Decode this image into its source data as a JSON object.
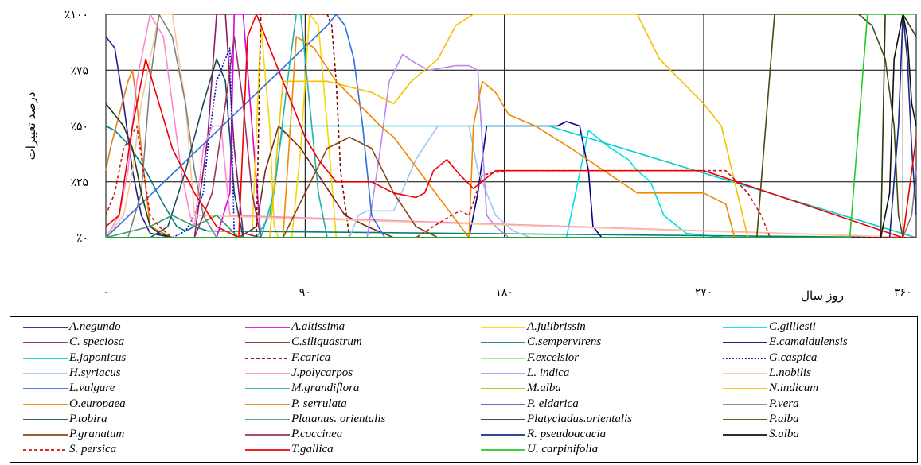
{
  "chart_data": {
    "type": "line",
    "ylabel": "درصد تغییرات",
    "xlabel": "روز سال",
    "xlim": [
      0,
      366
    ],
    "ylim": [
      0,
      100
    ],
    "x_ticks": [
      0,
      90,
      180,
      270,
      360
    ],
    "x_tick_labels": [
      "۰",
      "۹۰",
      "۱۸۰",
      "۲۷۰",
      "۳۶۰"
    ],
    "y_ticks": [
      0,
      25,
      50,
      75,
      100
    ],
    "y_tick_labels": [
      "٪۰",
      "٪۲۵",
      "٪۵۰",
      "٪۷۵",
      "٪۱۰۰"
    ],
    "grid": true,
    "legend_position": "bottom",
    "series": [
      {
        "name": "A.negundo",
        "color": "#1f1f8f",
        "dash": "solid",
        "x": [
          0,
          4,
          8,
          12,
          16,
          20,
          30,
          40,
          60,
          120,
          366
        ],
        "y": [
          90,
          85,
          60,
          30,
          10,
          2,
          0,
          0,
          0,
          0,
          0
        ]
      },
      {
        "name": "A.altissima",
        "color": "#e000e0",
        "dash": "solid",
        "x": [
          0,
          50,
          56,
          58,
          62,
          66,
          70,
          80,
          366
        ],
        "y": [
          0,
          0,
          20,
          100,
          100,
          50,
          0,
          0,
          0
        ]
      },
      {
        "name": "A.julibrissin",
        "color": "#f5d800",
        "dash": "solid",
        "x": [
          0,
          60,
          66,
          70,
          74,
          76,
          78,
          80,
          84,
          88,
          92,
          96,
          100,
          104,
          120,
          366
        ],
        "y": [
          0,
          0,
          0,
          95,
          50,
          5,
          0,
          0,
          0,
          40,
          100,
          95,
          50,
          0,
          0,
          0
        ]
      },
      {
        "name": "C.gilliesii",
        "color": "#00e0e0",
        "dash": "solid",
        "x": [
          0,
          200,
          208,
          218,
          228,
          236,
          240,
          246,
          252,
          262,
          280,
          366
        ],
        "y": [
          0,
          0,
          0,
          48,
          40,
          35,
          30,
          25,
          10,
          2,
          0,
          0
        ]
      },
      {
        "name": "C. speciosa",
        "color": "#8b1a6b",
        "dash": "solid",
        "x": [
          0,
          30,
          40,
          46,
          50,
          54,
          58,
          62,
          70,
          366
        ],
        "y": [
          0,
          0,
          0,
          45,
          100,
          100,
          40,
          2,
          0,
          0
        ]
      },
      {
        "name": "C.siliquastrum",
        "color": "#7a2a1a",
        "dash": "solid",
        "x": [
          0,
          60,
          68,
          72,
          78,
          88,
          98,
          108,
          118,
          130,
          366
        ],
        "y": [
          0,
          0,
          5,
          30,
          50,
          40,
          25,
          10,
          5,
          0,
          0
        ]
      },
      {
        "name": "C.sempervirens",
        "color": "#008080",
        "dash": "solid",
        "x": [
          0,
          4,
          10,
          18,
          26,
          32,
          36,
          40,
          46,
          366
        ],
        "y": [
          50,
          48,
          42,
          30,
          15,
          5,
          3,
          5,
          3,
          0
        ]
      },
      {
        "name": "E.camaldulensis",
        "color": "#00008b",
        "dash": "solid",
        "x": [
          0,
          160,
          164,
          168,
          172,
          180,
          195,
          204,
          208,
          214,
          218,
          220,
          224,
          366
        ],
        "y": [
          0,
          0,
          0,
          20,
          50,
          50,
          50,
          50,
          52,
          50,
          30,
          5,
          0,
          0
        ]
      },
      {
        "name": "E.japonicus",
        "color": "#00d0d0",
        "dash": "solid",
        "x": [
          0,
          68,
          74,
          80,
          100,
          140,
          180,
          200,
          366
        ],
        "y": [
          0,
          0,
          10,
          50,
          50,
          50,
          50,
          50,
          0
        ]
      },
      {
        "name": "F.carica",
        "color": "#800000",
        "dash": "dashed",
        "x": [
          0,
          64,
          68,
          70,
          90,
          100,
          102,
          104,
          106,
          110,
          366
        ],
        "y": [
          0,
          0,
          0,
          100,
          100,
          100,
          95,
          70,
          30,
          0,
          0
        ]
      },
      {
        "name": "F.excelsior",
        "color": "#90ee90",
        "dash": "solid",
        "x": [
          0,
          366
        ],
        "y": [
          0,
          0
        ]
      },
      {
        "name": "G.caspica",
        "color": "#0000cc",
        "dash": "dotted",
        "x": [
          0,
          30,
          36,
          40,
          44,
          46,
          50,
          54,
          56,
          58,
          366
        ],
        "y": [
          0,
          0,
          3,
          10,
          20,
          40,
          70,
          80,
          85,
          0,
          0
        ]
      },
      {
        "name": "H.syriacus",
        "color": "#9fc5f0",
        "dash": "solid",
        "x": [
          0,
          110,
          114,
          118,
          130,
          140,
          150,
          156,
          160,
          164,
          168,
          176,
          184,
          192,
          366
        ],
        "y": [
          0,
          0,
          10,
          12,
          12,
          35,
          50,
          50,
          50,
          50,
          30,
          10,
          3,
          0,
          0
        ]
      },
      {
        "name": "J.polycarpos",
        "color": "#ff88cc",
        "dash": "solid",
        "x": [
          0,
          6,
          10,
          14,
          20,
          26,
          30,
          34,
          38,
          40,
          44,
          48,
          52,
          56,
          366
        ],
        "y": [
          0,
          10,
          30,
          70,
          100,
          90,
          60,
          30,
          10,
          5,
          40,
          50,
          50,
          10,
          0
        ]
      },
      {
        "name": "L. indica",
        "color": "#bb88ee",
        "dash": "solid",
        "x": [
          0,
          118,
          124,
          128,
          134,
          140,
          146,
          152,
          158,
          164,
          168,
          172,
          176,
          182,
          366
        ],
        "y": [
          0,
          0,
          40,
          70,
          82,
          78,
          75,
          76,
          77,
          77,
          75,
          10,
          5,
          0,
          0
        ]
      },
      {
        "name": "L.nobilis",
        "color": "#f5c8a0",
        "dash": "solid",
        "x": [
          0,
          8,
          12,
          16,
          20,
          24,
          30,
          36,
          40,
          366
        ],
        "y": [
          0,
          10,
          30,
          60,
          80,
          100,
          100,
          60,
          10,
          0
        ]
      },
      {
        "name": "L.vulgare",
        "color": "#2f6fe0",
        "dash": "solid",
        "x": [
          0,
          100,
          104,
          108,
          112,
          116,
          120,
          126,
          366
        ],
        "y": [
          0,
          95,
          100,
          95,
          80,
          50,
          10,
          0,
          0
        ]
      },
      {
        "name": "M.grandiflora",
        "color": "#20b2aa",
        "dash": "solid",
        "x": [
          0,
          70,
          76,
          82,
          86,
          88,
          92,
          96,
          100,
          366
        ],
        "y": [
          0,
          0,
          20,
          70,
          100,
          100,
          60,
          20,
          0,
          0
        ]
      },
      {
        "name": "M.alba",
        "color": "#99cc00",
        "dash": "solid",
        "x": [
          0,
          366
        ],
        "y": [
          0,
          0
        ]
      },
      {
        "name": "N.indicum",
        "color": "#f5c000",
        "dash": "solid",
        "x": [
          0,
          70,
          74,
          80,
          100,
          120,
          130,
          138,
          150,
          158,
          166,
          172,
          180,
          200,
          220,
          240,
          250,
          260,
          270,
          278,
          290,
          366
        ],
        "y": [
          0,
          0,
          0,
          70,
          70,
          65,
          60,
          70,
          80,
          95,
          100,
          100,
          100,
          100,
          100,
          100,
          80,
          70,
          60,
          50,
          0,
          0
        ]
      },
      {
        "name": "O.europaea",
        "color": "#f08a00",
        "dash": "solid",
        "x": [
          0,
          80,
          86,
          94,
          104,
          114,
          124,
          130,
          164,
          166,
          170,
          176,
          182,
          194,
          210,
          240,
          270,
          280,
          284,
          290,
          366
        ],
        "y": [
          0,
          0,
          90,
          85,
          70,
          60,
          50,
          45,
          0,
          50,
          70,
          65,
          55,
          50,
          40,
          20,
          20,
          15,
          0,
          0,
          0
        ]
      },
      {
        "name": "P. serrulata",
        "color": "#e08020",
        "dash": "solid",
        "x": [
          0,
          2,
          6,
          10,
          12,
          14,
          16,
          20,
          30,
          366
        ],
        "y": [
          30,
          40,
          55,
          70,
          75,
          60,
          40,
          5,
          0,
          0
        ]
      },
      {
        "name": "P. eldarica",
        "color": "#5555bb",
        "dash": "solid",
        "x": [
          0,
          366
        ],
        "y": [
          0,
          0
        ]
      },
      {
        "name": "P.vera",
        "color": "#808080",
        "dash": "solid",
        "x": [
          0,
          10,
          16,
          20,
          24,
          30,
          36,
          40,
          44,
          50,
          360,
          364,
          366
        ],
        "y": [
          0,
          0,
          20,
          70,
          100,
          90,
          60,
          30,
          10,
          0,
          0,
          10,
          30
        ]
      },
      {
        "name": "P.tobira",
        "color": "#1a4a5a",
        "dash": "solid",
        "x": [
          0,
          20,
          28,
          36,
          44,
          50,
          54,
          58,
          62,
          366
        ],
        "y": [
          0,
          0,
          5,
          30,
          60,
          80,
          70,
          20,
          0,
          0
        ]
      },
      {
        "name": "Platanus. orientalis",
        "color": "#3a9a6a",
        "dash": "solid",
        "x": [
          0,
          20,
          30,
          40,
          50,
          60,
          366
        ],
        "y": [
          0,
          5,
          10,
          5,
          10,
          0,
          0
        ]
      },
      {
        "name": "Platycladus.orientalis",
        "color": "#2a3a10",
        "dash": "solid",
        "x": [
          0,
          4,
          8,
          12,
          16,
          20,
          24,
          30,
          300,
          350,
          352,
          354,
          360,
          366
        ],
        "y": [
          60,
          55,
          50,
          40,
          20,
          5,
          2,
          0,
          0,
          0,
          100,
          100,
          100,
          90
        ]
      },
      {
        "name": "P.alba",
        "color": "#4a4a10",
        "dash": "solid",
        "x": [
          0,
          290,
          294,
          298,
          302,
          306,
          310,
          340,
          346,
          352,
          356,
          358,
          360,
          366
        ],
        "y": [
          0,
          0,
          0,
          50,
          100,
          100,
          100,
          100,
          95,
          80,
          50,
          10,
          0,
          0
        ]
      },
      {
        "name": "P.granatum",
        "color": "#8b4513",
        "dash": "solid",
        "x": [
          0,
          80,
          90,
          100,
          110,
          120,
          130,
          140,
          150,
          160,
          366
        ],
        "y": [
          0,
          0,
          20,
          40,
          45,
          40,
          20,
          5,
          0,
          0,
          0
        ]
      },
      {
        "name": "P.coccinea",
        "color": "#993366",
        "dash": "solid",
        "x": [
          0,
          40,
          48,
          54,
          58,
          62,
          66,
          70,
          366
        ],
        "y": [
          0,
          0,
          20,
          60,
          90,
          60,
          20,
          0,
          0
        ]
      },
      {
        "name": "R. pseudoacacia",
        "color": "#1a2a8a",
        "dash": "solid",
        "x": [
          0,
          354,
          358,
          360,
          362,
          364,
          366
        ],
        "y": [
          0,
          0,
          50,
          100,
          80,
          40,
          10
        ]
      },
      {
        "name": "S.alba",
        "color": "#101010",
        "dash": "solid",
        "x": [
          0,
          350,
          354,
          356,
          358,
          360,
          362,
          364,
          366
        ],
        "y": [
          0,
          0,
          20,
          80,
          90,
          100,
          90,
          60,
          50
        ]
      },
      {
        "name": "S. persica",
        "color": "#d01010",
        "dash": "dashed",
        "x": [
          0,
          4,
          8,
          14,
          20,
          24,
          30,
          40,
          60,
          140,
          148,
          156,
          160,
          164,
          170,
          180,
          200,
          230,
          250,
          270,
          276,
          280,
          290,
          296,
          300,
          306,
          366
        ],
        "y": [
          10,
          20,
          40,
          50,
          10,
          5,
          0,
          0,
          0,
          0,
          5,
          10,
          12,
          10,
          28,
          30,
          30,
          30,
          30,
          30,
          30,
          30,
          20,
          10,
          0,
          0,
          0
        ]
      },
      {
        "name": "T.gallica",
        "color": "#ee0000",
        "dash": "solid",
        "x": [
          0,
          6,
          12,
          18,
          24,
          30,
          40,
          50,
          60,
          64,
          68,
          70,
          72,
          74,
          80,
          86,
          90,
          96,
          100,
          104,
          110,
          120,
          130,
          140,
          144,
          148,
          154,
          160,
          166,
          176,
          180,
          200,
          220,
          240,
          260,
          270,
          360,
          364,
          366
        ],
        "y": [
          5,
          10,
          50,
          80,
          60,
          40,
          20,
          5,
          0,
          90,
          100,
          95,
          90,
          85,
          70,
          55,
          45,
          35,
          30,
          25,
          25,
          25,
          20,
          18,
          20,
          30,
          35,
          28,
          22,
          30,
          30,
          30,
          30,
          30,
          30,
          30,
          0,
          30,
          45
        ]
      },
      {
        "name": "U. carpinifolia",
        "color": "#22cc22",
        "dash": "solid",
        "x": [
          0,
          330,
          336,
          340,
          344,
          346,
          348,
          366
        ],
        "y": [
          0,
          0,
          0,
          50,
          100,
          100,
          100,
          100
        ]
      }
    ]
  }
}
